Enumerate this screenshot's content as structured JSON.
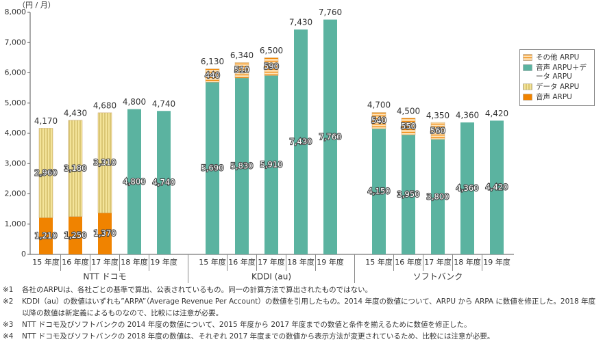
{
  "chart_data": {
    "type": "stacked-bar",
    "unit_label": "（円 / 月）",
    "groups": [
      {
        "name": "NTT ドコモ",
        "categories": [
          "15 年度",
          "16 年度",
          "17 年度",
          "18 年度",
          "19 年度"
        ]
      },
      {
        "name": "KDDI (au)",
        "categories": [
          "15 年度",
          "16 年度",
          "17 年度",
          "18 年度",
          "19 年度"
        ]
      },
      {
        "name": "ソフトバンク",
        "categories": [
          "15 年度",
          "16 年度",
          "17 年度",
          "18 年度",
          "19 年度"
        ]
      }
    ],
    "series": [
      {
        "name": "音声 ARPU",
        "color": "#f08300",
        "hatch": "none",
        "values": [
          1210,
          1250,
          1370,
          null,
          null,
          null,
          null,
          null,
          null,
          null,
          null,
          null,
          null,
          null,
          null
        ],
        "value_labels": [
          "1,210",
          "1,250",
          "1,370",
          null,
          null,
          null,
          null,
          null,
          null,
          null,
          null,
          null,
          null,
          null,
          null
        ]
      },
      {
        "name": "データ ARPU",
        "color": "#f4e49a",
        "hatch": "vertical",
        "values": [
          2960,
          3180,
          3310,
          null,
          null,
          null,
          null,
          null,
          null,
          null,
          null,
          null,
          null,
          null,
          null
        ],
        "value_labels": [
          "2,960",
          "3,180",
          "3,310",
          null,
          null,
          null,
          null,
          null,
          null,
          null,
          null,
          null,
          null,
          null,
          null
        ]
      },
      {
        "name": "音声 ARPU＋データ ARPU",
        "color": "#5bb3a0",
        "hatch": "none",
        "values": [
          null,
          null,
          null,
          4800,
          4740,
          5690,
          5830,
          5910,
          7430,
          7760,
          4150,
          3950,
          3800,
          4360,
          4420
        ],
        "value_labels": [
          null,
          null,
          null,
          "4,800",
          "4,740",
          "5,690",
          "5,830",
          "5,910",
          "7,430",
          "7,760",
          "4,150",
          "3,950",
          "3,800",
          "4,360",
          "4,420"
        ]
      },
      {
        "name": "その他 ARPU",
        "color": "#f9c98a",
        "hatch": "horizontal",
        "values": [
          null,
          null,
          null,
          null,
          null,
          440,
          510,
          590,
          null,
          null,
          540,
          550,
          560,
          null,
          null
        ]
      }
    ],
    "totals": [
      4170,
      4430,
      4680,
      4800,
      4740,
      6130,
      6340,
      6500,
      7430,
      7760,
      4700,
      4500,
      4350,
      4360,
      4420
    ],
    "total_labels": [
      "4,170",
      "4,430",
      "4,680",
      "4,800",
      "4,740",
      "6,130",
      "6,340",
      "6,500",
      "7,430",
      "7,760",
      "4,700",
      "4,500",
      "4,350",
      "4,360",
      "4,420"
    ],
    "ylim": [
      0,
      8000
    ],
    "yticks": [
      0,
      {
        "value": 1000,
        "label": "1,000"
      },
      {
        "value": 2000,
        "label": "2,000"
      },
      {
        "value": 3000,
        "label": "3,000"
      },
      {
        "value": 4000,
        "label": "4,000"
      },
      {
        "value": 5000,
        "label": "5,000"
      },
      {
        "value": 6000,
        "label": "6,000"
      },
      {
        "value": 7000,
        "label": "7,000"
      },
      {
        "value": 8000,
        "label": "8,000"
      }
    ],
    "legend_position": "right",
    "notes": [
      {
        "mark": "※1",
        "text": "各社のARPUは、各社ごとの基準で算出、公表されているもの。同一の計算方法で算出されたものではない。"
      },
      {
        "mark": "※2",
        "text": "KDDI（au）の数値はいずれも”ARPA”（Average Revenue Per Account）の数値を引用したもの。2014 年度の数値について、ARPU から ARPA に数値を修正した。2018 年度以降の数値は新定義によるものなので、比較には注意が必要。"
      },
      {
        "mark": "※3",
        "text": "NTT ドコモ及びソフトバンクの 2014 年度の数値について、2015 年度から 2017 年度までの数値と条件を揃えるために数値を修正した。"
      },
      {
        "mark": "※4",
        "text": "NTT ドコモ及びソフトバンクの 2018 年度の数値は、それぞれ 2017 年度までの数値から表示方法が変更されているため、比較には注意が必要。"
      }
    ]
  }
}
